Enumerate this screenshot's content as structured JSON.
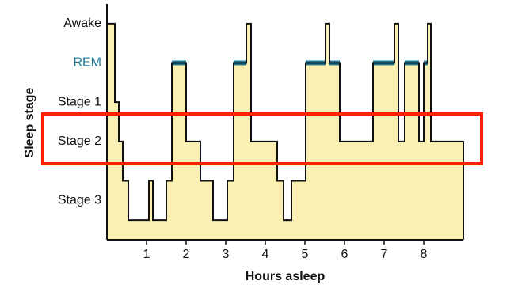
{
  "chart_data": {
    "type": "step",
    "x_label": "Hours asleep",
    "y_label": "Sleep stage",
    "x": [
      0,
      0.2,
      0.3,
      0.4,
      0.54,
      1.06,
      1.16,
      1.5,
      1.64,
      2.0,
      2.36,
      2.68,
      3.04,
      3.2,
      3.52,
      3.64,
      4.3,
      4.46,
      4.66,
      5.02,
      5.52,
      5.62,
      5.88,
      6.72,
      7.26,
      7.36,
      7.52,
      7.88,
      8.0,
      8.1,
      8.18
    ],
    "values": [
      4,
      2,
      1,
      0,
      -1,
      0,
      -1,
      0,
      3,
      1,
      0,
      -1,
      0,
      3,
      4,
      1,
      0,
      -1,
      0,
      3,
      4,
      3,
      1,
      3,
      4,
      1,
      3,
      1,
      3,
      4,
      1
    ],
    "fill": "#faf0b4",
    "line_color": "#111111",
    "xlim": [
      0,
      9
    ],
    "xticks": [
      1,
      2,
      3,
      4,
      5,
      6,
      7,
      8
    ],
    "ylim": [
      -1.5,
      4.5
    ],
    "yticks": [
      {
        "value": 4,
        "label": "Awake"
      },
      {
        "value": 3,
        "label": "REM",
        "color": "#1f7a99"
      },
      {
        "value": 2,
        "label": "Stage 1"
      },
      {
        "value": 1,
        "label": "Stage 2"
      },
      {
        "value": -0.5,
        "label": "Stage 3"
      }
    ]
  }
}
